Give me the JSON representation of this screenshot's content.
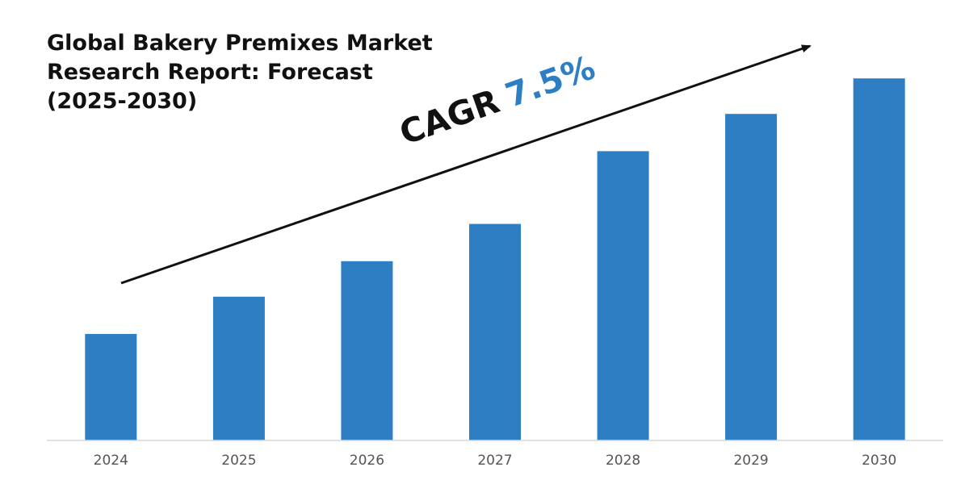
{
  "title_lines": [
    "Global Bakery Premixes Market",
    "Research Report: Forecast",
    "(2025-2030)"
  ],
  "annotation": {
    "label": "CAGR",
    "value": "7.5%"
  },
  "colors": {
    "bar": "#2e7ec4",
    "accent": "#2e7ec4",
    "text": "#111111",
    "axis": "#d9d9d9"
  },
  "chart_data": {
    "type": "bar",
    "title": "Global Bakery Premixes Market Research Report: Forecast (2025-2030)",
    "categories": [
      "2024",
      "2025",
      "2026",
      "2027",
      "2028",
      "2029",
      "2030"
    ],
    "values": [
      60,
      81,
      101,
      122,
      163,
      184,
      204
    ],
    "ylim": [
      0,
      220
    ],
    "xlabel": "",
    "ylabel": "",
    "grid": false,
    "legend": "none",
    "value_note": "relative bar heights; no value axis printed"
  }
}
